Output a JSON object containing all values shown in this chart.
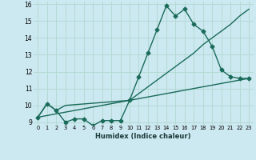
{
  "xlabel": "Humidex (Indice chaleur)",
  "bg_color": "#cce8f0",
  "line_color": "#1a6b5a",
  "grid_color": "#b0d8d0",
  "ylim": [
    8.85,
    16.15
  ],
  "xlim": [
    -0.5,
    23.5
  ],
  "yticks": [
    9,
    10,
    11,
    12,
    13,
    14,
    15,
    16
  ],
  "xticks": [
    0,
    1,
    2,
    3,
    4,
    5,
    6,
    7,
    8,
    9,
    10,
    11,
    12,
    13,
    14,
    15,
    16,
    17,
    18,
    19,
    20,
    21,
    22,
    23
  ],
  "series1_x": [
    0,
    1,
    2,
    3,
    4,
    5,
    6,
    7,
    8,
    9,
    10,
    11,
    12,
    13,
    14,
    15,
    16,
    17,
    18,
    19,
    20,
    21,
    22,
    23
  ],
  "series1_y": [
    9.3,
    10.1,
    9.7,
    9.0,
    9.2,
    9.2,
    8.8,
    9.1,
    9.1,
    9.1,
    10.3,
    11.7,
    13.1,
    14.5,
    15.9,
    15.3,
    15.7,
    14.8,
    14.4,
    13.5,
    12.1,
    11.7,
    11.6,
    11.6
  ],
  "series2_x": [
    0,
    1,
    2,
    3,
    10,
    11,
    12,
    13,
    14,
    15,
    16,
    17,
    18,
    19,
    20,
    21,
    22,
    23
  ],
  "series2_y": [
    9.3,
    10.1,
    9.7,
    10.0,
    10.3,
    10.7,
    11.1,
    11.5,
    11.9,
    12.3,
    12.7,
    13.1,
    13.6,
    14.0,
    14.4,
    14.8,
    15.3,
    15.7
  ],
  "series3_x": [
    0,
    23
  ],
  "series3_y": [
    9.3,
    11.6
  ],
  "marker_size": 2.5,
  "line_width": 1.0
}
